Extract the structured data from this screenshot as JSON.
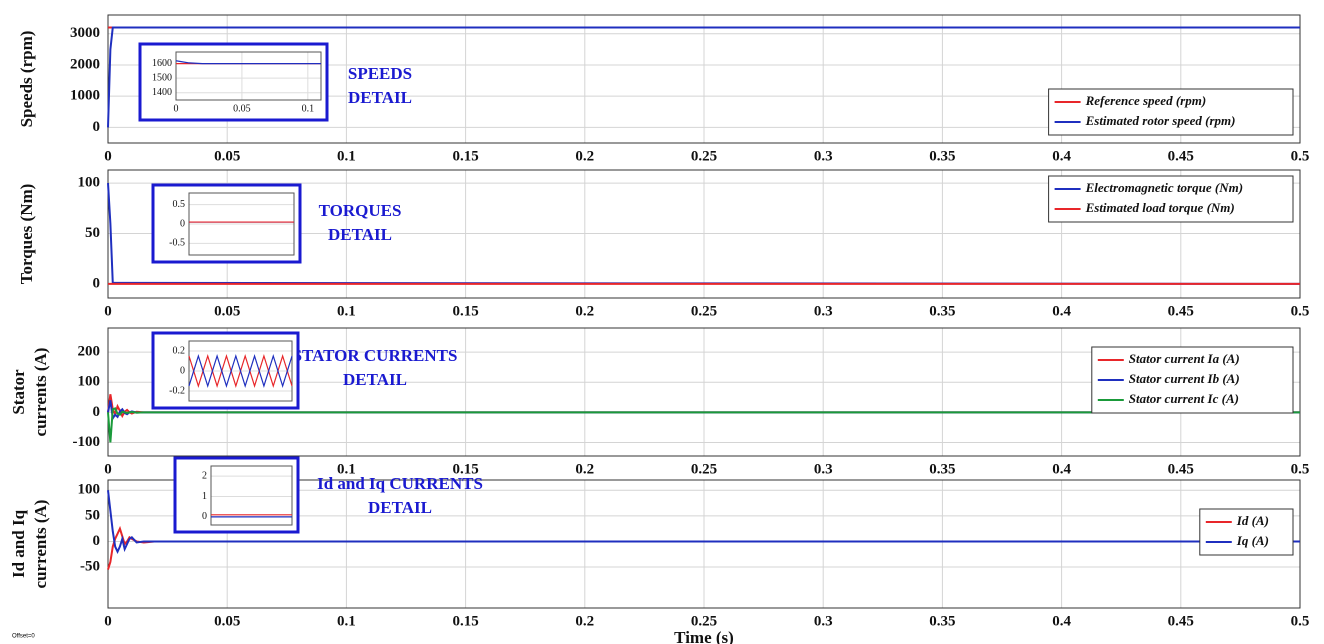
{
  "chart_data": [
    {
      "type": "line",
      "ylabel": "Speeds (rpm)",
      "xlim": [
        0,
        0.5
      ],
      "xticks": [
        0,
        0.05,
        0.1,
        0.15,
        0.2,
        0.25,
        0.3,
        0.35,
        0.4,
        0.45,
        0.5
      ],
      "ylim": [
        -500,
        3600
      ],
      "yticks": [
        0,
        1000,
        2000,
        3000
      ],
      "grid": true,
      "legend": "lower right",
      "x": [
        0,
        0.001,
        0.002,
        0.5
      ],
      "series": [
        {
          "name": "Reference speed (rpm)",
          "color": "#e8262a",
          "values": [
            3200,
            3200,
            3200,
            3200
          ]
        },
        {
          "name": "Estimated rotor speed (rpm)",
          "color": "#1f2fbf",
          "values": [
            0,
            2500,
            3200,
            3200
          ]
        }
      ],
      "annotation": [
        "SPEEDS",
        "DETAIL"
      ],
      "inset": {
        "xlim": [
          0,
          0.11
        ],
        "xticks": [
          0,
          0.05,
          0.1
        ],
        "ylim": [
          1350,
          1680
        ],
        "yticks": [
          1400,
          1500,
          1600
        ],
        "x": [
          0,
          0.005,
          0.01,
          0.02,
          0.11
        ],
        "series": [
          {
            "color": "#e8262a",
            "values": [
              1600,
              1600,
              1600,
              1600,
              1600
            ]
          },
          {
            "color": "#1f2fbf",
            "values": [
              1620,
              1612,
              1605,
              1600,
              1600
            ]
          }
        ]
      }
    },
    {
      "type": "line",
      "ylabel": "Torques (Nm)",
      "xlim": [
        0,
        0.5
      ],
      "xticks": [
        0,
        0.05,
        0.1,
        0.15,
        0.2,
        0.25,
        0.3,
        0.35,
        0.4,
        0.45,
        0.5
      ],
      "ylim": [
        -14,
        113
      ],
      "yticks": [
        0,
        50,
        100
      ],
      "grid": true,
      "legend": "upper right",
      "x": [
        0,
        0.001,
        0.002,
        0.5
      ],
      "series": [
        {
          "name": "Electromagnetic torque (Nm)",
          "color": "#1f2fbf",
          "values": [
            100,
            60,
            1,
            0
          ]
        },
        {
          "name": "Estimated load torque (Nm)",
          "color": "#e8262a",
          "values": [
            0,
            0,
            0,
            0
          ]
        }
      ],
      "annotation": [
        "TORQUES",
        "DETAIL"
      ],
      "inset": {
        "xlim": [
          0,
          0.11
        ],
        "ylim": [
          -0.8,
          0.8
        ],
        "yticks": [
          -0.5,
          0,
          0.5
        ],
        "x": [
          0,
          0.11
        ],
        "series": [
          {
            "color": "#1f2fbf",
            "values": [
              0.05,
              0.05
            ]
          },
          {
            "color": "#e8262a",
            "values": [
              0.05,
              0.05
            ]
          }
        ]
      }
    },
    {
      "type": "line",
      "ylabel": [
        "Stator",
        "currents (A)"
      ],
      "xlim": [
        0,
        0.5
      ],
      "xticks": [
        0,
        0.05,
        0.1,
        0.15,
        0.2,
        0.25,
        0.3,
        0.35,
        0.4,
        0.45,
        0.5
      ],
      "ylim": [
        -145,
        280
      ],
      "yticks": [
        -100,
        0,
        100,
        200
      ],
      "grid": true,
      "legend": "right",
      "x": [
        0,
        0.001,
        0.002,
        0.003,
        0.004,
        0.005,
        0.006,
        0.007,
        0.008,
        0.009,
        0.01,
        0.012,
        0.015,
        0.5
      ],
      "series": [
        {
          "name": "Stator current Ia (A)",
          "color": "#e8262a",
          "values": [
            0,
            60,
            10,
            -5,
            20,
            5,
            -12,
            2,
            8,
            0,
            -4,
            2,
            0,
            0
          ]
        },
        {
          "name": "Stator current Ib (A)",
          "color": "#1f2fbf",
          "values": [
            0,
            40,
            -20,
            -8,
            -15,
            3,
            10,
            -2,
            -6,
            0,
            3,
            -1,
            0,
            0
          ]
        },
        {
          "name": "Stator current Ic (A)",
          "color": "#1a9a3a",
          "values": [
            0,
            -100,
            10,
            13,
            -5,
            -8,
            2,
            0,
            -2,
            0,
            1,
            -1,
            0,
            0
          ]
        }
      ],
      "annotation": [
        "STATOR CURRENTS",
        "DETAIL"
      ],
      "inset": {
        "xlim": [
          0,
          0.11
        ],
        "ylim": [
          -0.3,
          0.3
        ],
        "yticks": [
          -0.2,
          0,
          0.2
        ],
        "x": [
          0,
          0.01,
          0.02,
          0.03,
          0.04,
          0.05,
          0.06,
          0.07,
          0.08,
          0.09,
          0.1,
          0.11
        ],
        "series": [
          {
            "color": "#e8262a",
            "values": [
              0.15,
              -0.15,
              0.15,
              -0.15,
              0.15,
              -0.15,
              0.15,
              -0.15,
              0.15,
              -0.15,
              0.15,
              -0.15
            ]
          },
          {
            "color": "#1f2fbf",
            "values": [
              -0.15,
              0.15,
              -0.15,
              0.15,
              -0.15,
              0.15,
              -0.15,
              0.15,
              -0.15,
              0.15,
              -0.15,
              0.15
            ]
          }
        ]
      }
    },
    {
      "type": "line",
      "ylabel": [
        "Id and Iq",
        "currents (A)"
      ],
      "xlabel": "Time (s)",
      "xlim": [
        0,
        0.5
      ],
      "xticks": [
        0,
        0.05,
        0.1,
        0.15,
        0.2,
        0.25,
        0.3,
        0.35,
        0.4,
        0.45,
        0.5
      ],
      "ylim": [
        -130,
        120
      ],
      "yticks": [
        -50,
        0,
        50,
        100
      ],
      "grid": true,
      "legend": "right",
      "x": [
        0,
        0.001,
        0.002,
        0.003,
        0.004,
        0.005,
        0.006,
        0.007,
        0.008,
        0.009,
        0.01,
        0.012,
        0.015,
        0.02,
        0.5
      ],
      "series": [
        {
          "name": "Id (A)",
          "color": "#e8262a",
          "values": [
            -55,
            -40,
            -10,
            5,
            15,
            25,
            10,
            -5,
            0,
            8,
            5,
            0,
            -2,
            0,
            0
          ]
        },
        {
          "name": "Iq (A)",
          "color": "#1f2fbf",
          "values": [
            100,
            60,
            20,
            -10,
            -20,
            -10,
            5,
            -15,
            -5,
            5,
            8,
            -2,
            0,
            0,
            0
          ]
        }
      ],
      "annotation": [
        "Id and Iq CURRENTS",
        "DETAIL"
      ],
      "inset": {
        "xlim": [
          0,
          0.11
        ],
        "ylim": [
          -0.4,
          2.5
        ],
        "yticks": [
          0,
          1,
          2
        ],
        "x": [
          0,
          0.11
        ],
        "series": [
          {
            "color": "#e8262a",
            "values": [
              0.1,
              0.1
            ]
          },
          {
            "color": "#1f2fbf",
            "values": [
              0,
              0
            ]
          }
        ]
      }
    }
  ],
  "footer": "Offset=0"
}
